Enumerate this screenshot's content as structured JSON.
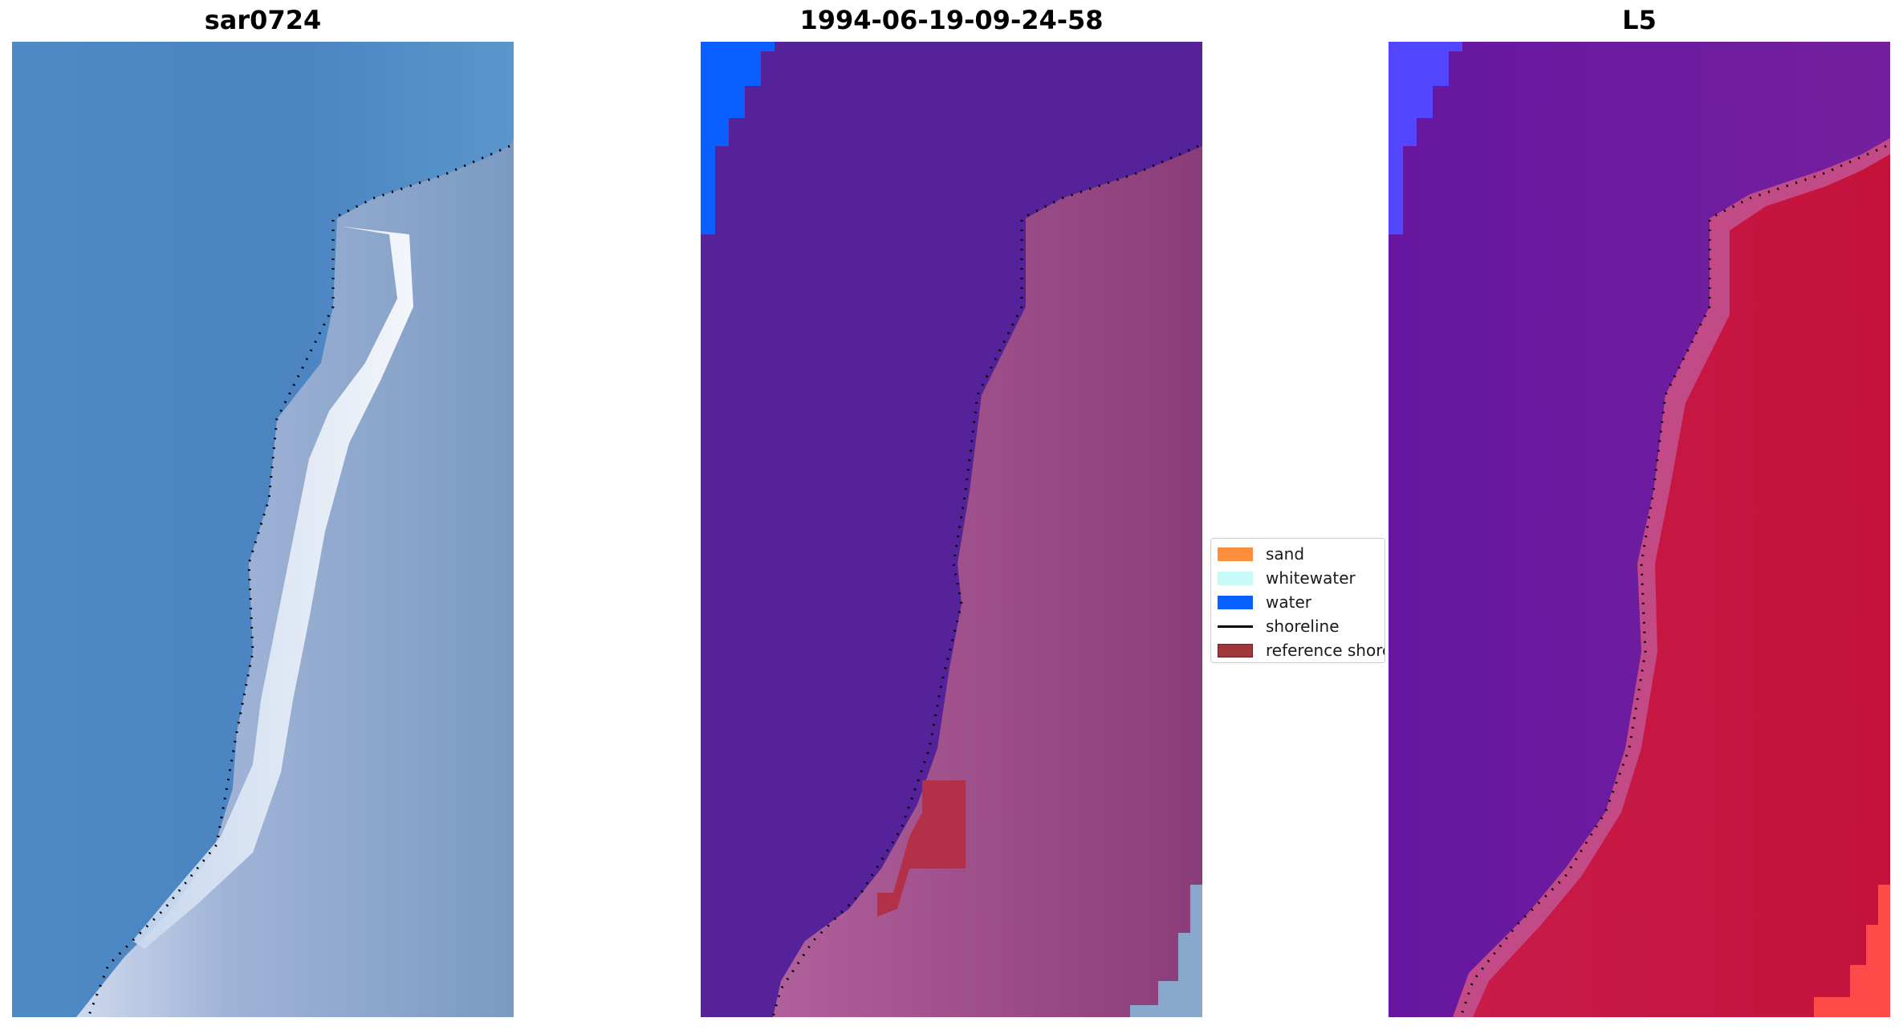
{
  "panels": [
    {
      "title": "sar0724"
    },
    {
      "title": "1994-06-19-09-24-58"
    },
    {
      "title": "L5"
    }
  ],
  "legend": {
    "placement": "center",
    "items": [
      {
        "label": "sand",
        "color": "#fd8e3c",
        "kind": "patch"
      },
      {
        "label": "whitewater",
        "color": "#c7f9f6",
        "kind": "patch"
      },
      {
        "label": "water",
        "color": "#0a60ff",
        "kind": "patch"
      },
      {
        "label": "shoreline",
        "color": "#000000",
        "kind": "line"
      },
      {
        "label": "reference shoreline buffer",
        "color": "#a0373a",
        "kind": "patch"
      }
    ]
  },
  "colors": {
    "rgb_water": "#4a82c0",
    "rgb_surf": "#e6eefa",
    "rgb_land": "#8ba4c8",
    "classified_water_overlay": "#55229a",
    "classified_land": "#a8578f",
    "index_water": "#6a1aa0",
    "index_land": "#c0143c"
  },
  "chart_data": {
    "type": "heatmap",
    "grid": "off",
    "axes": "off",
    "shoreline_style": "dotted black",
    "images": [
      "sar0724",
      "1994-06-19-09-24-58",
      "L5"
    ]
  }
}
